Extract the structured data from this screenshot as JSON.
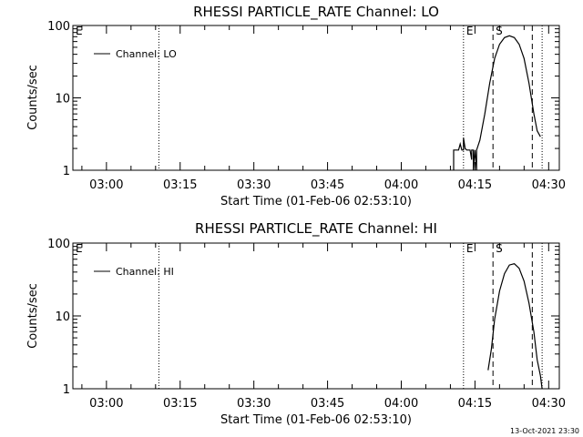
{
  "chart_data": [
    {
      "type": "line",
      "title": "RHESSI PARTICLE_RATE Channel: LO",
      "xlabel": "Start Time (01-Feb-06 02:53:10)",
      "ylabel": "Counts/sec",
      "yscale": "log",
      "xlim": [
        "02:53:10",
        "04:32:10"
      ],
      "ylim": [
        1,
        100
      ],
      "x_ticks": [
        "03:00",
        "03:15",
        "03:30",
        "03:45",
        "04:00",
        "04:15",
        "04:30"
      ],
      "y_ticks": [
        "1",
        "10",
        "100"
      ],
      "legend": {
        "entries": [
          "Channel: LO"
        ],
        "position": "top-left"
      },
      "markers": [
        {
          "label": "E",
          "time": "02:53:10",
          "style": "none"
        },
        {
          "label": "",
          "time": "03:10:40",
          "style": "dotted"
        },
        {
          "label": "E",
          "time": "04:12:40",
          "style": "dotted"
        },
        {
          "label": "S",
          "time": "04:18:40",
          "style": "dashed"
        },
        {
          "label": "",
          "time": "04:26:40",
          "style": "dashed"
        },
        {
          "label": "",
          "time": "04:28:40",
          "style": "dotted"
        }
      ],
      "series": [
        {
          "name": "Channel: LO",
          "points": [
            [
              "04:10:40",
              1.0
            ],
            [
              "04:10:40",
              1.9
            ],
            [
              "04:11:40",
              1.9
            ],
            [
              "04:12:00",
              2.3
            ],
            [
              "04:12:20",
              1.9
            ],
            [
              "04:12:40",
              1.9
            ],
            [
              "04:12:40",
              2.8
            ],
            [
              "04:13:00",
              2.0
            ],
            [
              "04:13:20",
              1.9
            ],
            [
              "04:13:40",
              1.9
            ],
            [
              "04:14:00",
              1.9
            ],
            [
              "04:14:20",
              1.4
            ],
            [
              "04:14:20",
              1.9
            ],
            [
              "04:14:40",
              1.9
            ],
            [
              "04:14:40",
              1.0
            ],
            [
              "04:15:00",
              1.9
            ],
            [
              "04:15:20",
              1.0
            ],
            [
              "04:15:20",
              1.9
            ],
            [
              "04:16:00",
              2.6
            ],
            [
              "04:17:00",
              6.0
            ],
            [
              "04:18:00",
              16
            ],
            [
              "04:19:00",
              35
            ],
            [
              "04:20:00",
              55
            ],
            [
              "04:21:00",
              68
            ],
            [
              "04:22:00",
              72
            ],
            [
              "04:23:00",
              68
            ],
            [
              "04:24:00",
              55
            ],
            [
              "04:25:00",
              35
            ],
            [
              "04:26:00",
              16
            ],
            [
              "04:27:00",
              6
            ],
            [
              "04:27:40",
              3.5
            ],
            [
              "04:28:20",
              2.9
            ]
          ]
        }
      ]
    },
    {
      "type": "line",
      "title": "RHESSI PARTICLE_RATE Channel: HI",
      "xlabel": "Start Time (01-Feb-06 02:53:10)",
      "ylabel": "Counts/sec",
      "yscale": "log",
      "xlim": [
        "02:53:10",
        "04:32:10"
      ],
      "ylim": [
        1,
        100
      ],
      "x_ticks": [
        "03:00",
        "03:15",
        "03:30",
        "03:45",
        "04:00",
        "04:15",
        "04:30"
      ],
      "y_ticks": [
        "1",
        "10",
        "100"
      ],
      "legend": {
        "entries": [
          "Channel: HI"
        ],
        "position": "top-left"
      },
      "markers": [
        {
          "label": "E",
          "time": "02:53:10",
          "style": "none"
        },
        {
          "label": "",
          "time": "03:10:40",
          "style": "dotted"
        },
        {
          "label": "E",
          "time": "04:12:40",
          "style": "dotted"
        },
        {
          "label": "S",
          "time": "04:18:40",
          "style": "dashed"
        },
        {
          "label": "",
          "time": "04:26:40",
          "style": "dashed"
        },
        {
          "label": "",
          "time": "04:28:40",
          "style": "dotted"
        }
      ],
      "series": [
        {
          "name": "Channel: HI",
          "points": [
            [
              "04:17:40",
              1.8
            ],
            [
              "04:18:20",
              3.5
            ],
            [
              "04:19:00",
              9
            ],
            [
              "04:20:00",
              22
            ],
            [
              "04:21:00",
              38
            ],
            [
              "04:22:00",
              50
            ],
            [
              "04:23:00",
              52
            ],
            [
              "04:24:00",
              45
            ],
            [
              "04:25:00",
              30
            ],
            [
              "04:26:00",
              15
            ],
            [
              "04:27:00",
              6
            ],
            [
              "04:27:40",
              2.5
            ],
            [
              "04:28:20",
              1.5
            ],
            [
              "04:28:40",
              1.0
            ]
          ]
        }
      ]
    }
  ],
  "footer": {
    "date": "13-Oct-2021 23:30"
  },
  "colors": {
    "line": "#000000",
    "background": "#ffffff"
  }
}
